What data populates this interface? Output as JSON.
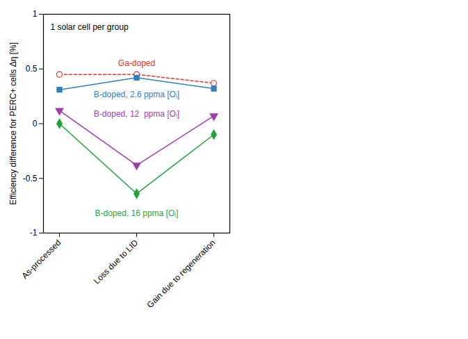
{
  "chart_data": {
    "type": "line",
    "annotation": "1 solar cell per group",
    "y_label": "Efficiency difference for PERC+ cells Δη [%]",
    "categories": [
      "As-processed",
      "Loss due to LID",
      "Gain due to regeneration"
    ],
    "ylim": [
      -1,
      1
    ],
    "yticks": [
      -1,
      -0.5,
      0,
      0.5,
      1
    ],
    "grid": false,
    "series": [
      {
        "name": "Ga-doped",
        "color": "#e8312a",
        "marker": "circle_open",
        "line_style": "dashed",
        "values": [
          0.45,
          0.45,
          0.37
        ]
      },
      {
        "name": "B-doped, 2.6 ppma [Oᵢ]",
        "color": "#2f7fc1",
        "marker": "square",
        "line_style": "solid",
        "values": [
          0.31,
          0.42,
          0.32
        ]
      },
      {
        "name": "B-doped, 12  ppma [Oᵢ]",
        "color": "#a03cb0",
        "marker": "triangle_down",
        "line_style": "solid",
        "values": [
          0.12,
          -0.38,
          0.07
        ]
      },
      {
        "name": "B-doped, 16 ppma [Oᵢ]",
        "color": "#1fa53a",
        "marker": "diamond",
        "line_style": "solid",
        "values": [
          0.0,
          -0.64,
          -0.1
        ]
      }
    ]
  }
}
